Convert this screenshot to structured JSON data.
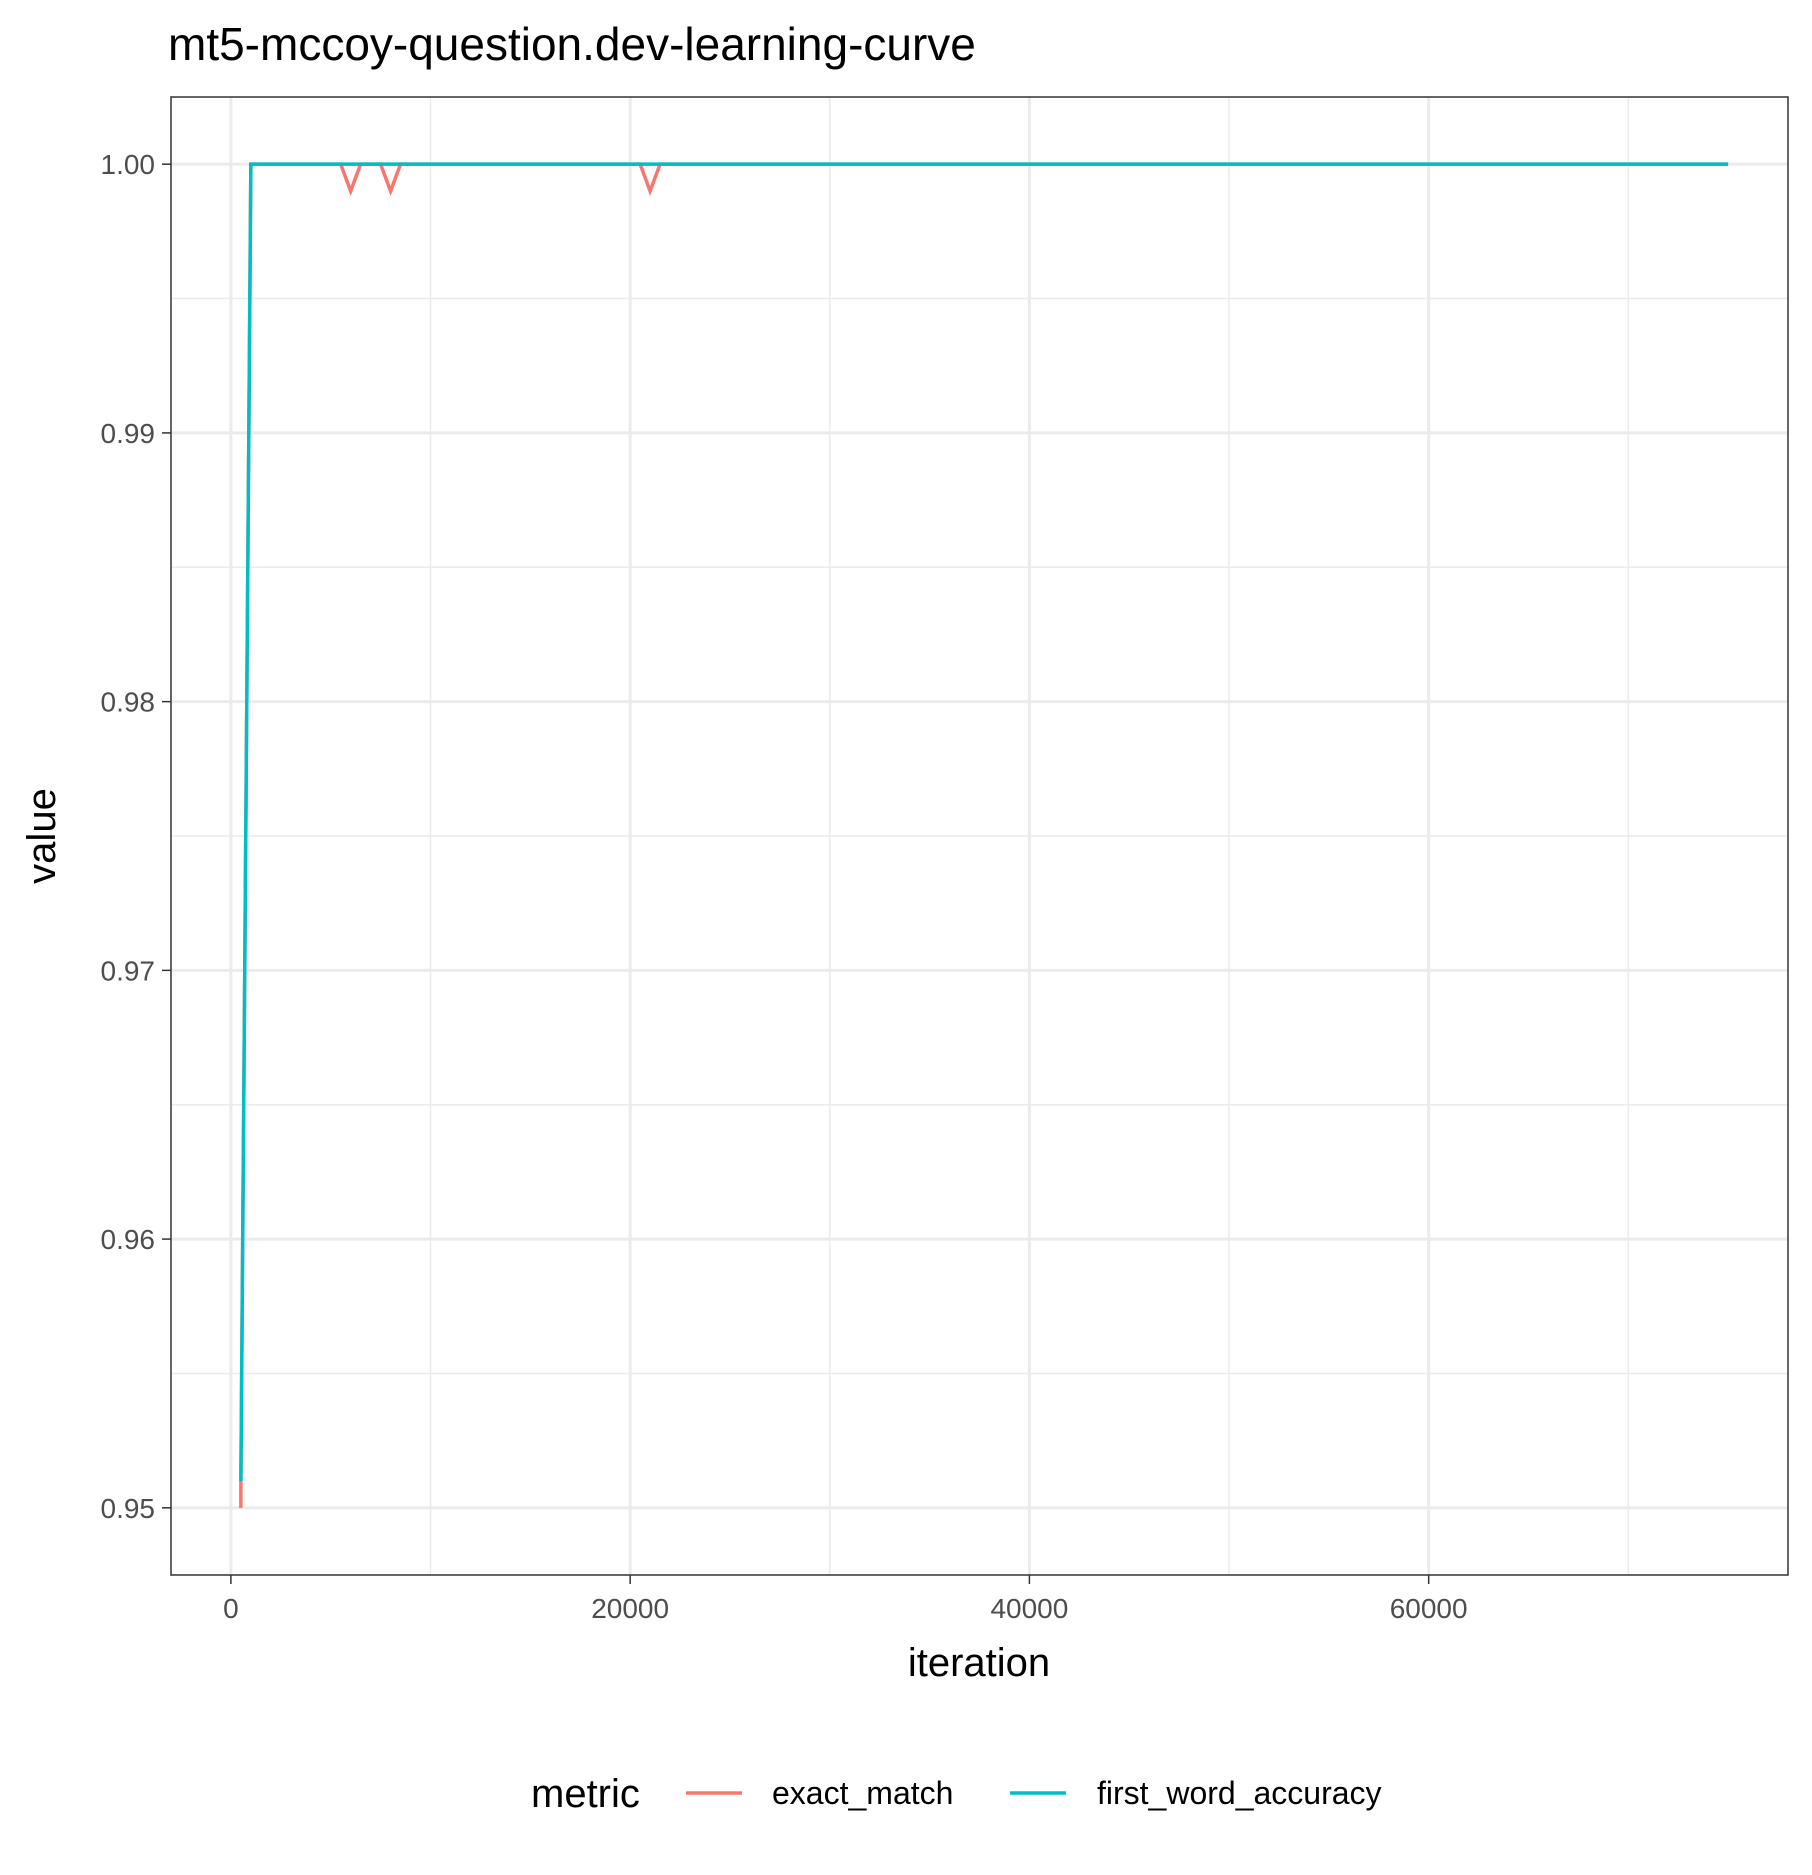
{
  "chart_data": {
    "type": "line",
    "title": "mt5-mccoy-question.dev-learning-curve",
    "xlabel": "iteration",
    "ylabel": "value",
    "xlim": [
      -3000,
      78000
    ],
    "ylim": [
      0.9475,
      1.0025
    ],
    "x_ticks": [
      0,
      20000,
      40000,
      60000
    ],
    "x_tick_labels": [
      "0",
      "20000",
      "40000",
      "60000"
    ],
    "x_minor_ticks": [
      10000,
      30000,
      50000,
      70000
    ],
    "y_ticks": [
      0.95,
      0.96,
      0.97,
      0.98,
      0.99,
      1.0
    ],
    "y_tick_labels": [
      "0.95",
      "0.96",
      "0.97",
      "0.98",
      "0.99",
      "1.00"
    ],
    "y_minor_ticks": [
      0.955,
      0.965,
      0.975,
      0.985,
      0.995
    ],
    "grid": true,
    "legend_title": "metric",
    "legend_position": "bottom",
    "series": [
      {
        "name": "exact_match",
        "color": "#F8766D",
        "points": [
          [
            500,
            0.95
          ],
          [
            500,
            0.951
          ],
          [
            1000,
            1.0
          ],
          [
            5500,
            1.0
          ],
          [
            6000,
            0.999
          ],
          [
            6500,
            1.0
          ],
          [
            7500,
            1.0
          ],
          [
            8000,
            0.999
          ],
          [
            8500,
            1.0
          ],
          [
            20500,
            1.0
          ],
          [
            21000,
            0.999
          ],
          [
            21500,
            1.0
          ],
          [
            75000,
            1.0
          ]
        ]
      },
      {
        "name": "first_word_accuracy",
        "color": "#00BFC4",
        "points": [
          [
            500,
            0.951
          ],
          [
            1000,
            1.0
          ],
          [
            75000,
            1.0
          ]
        ]
      }
    ]
  }
}
